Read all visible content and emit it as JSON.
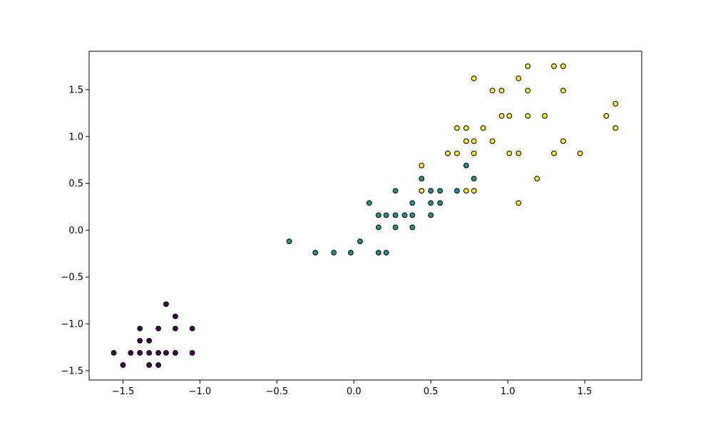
{
  "chart_data": {
    "type": "scatter",
    "title": "",
    "xlabel": "",
    "ylabel": "",
    "xlim": [
      -1.72,
      1.87
    ],
    "ylim": [
      -1.6,
      1.91
    ],
    "x_ticks": [
      -1.5,
      -1.0,
      -0.5,
      0.0,
      0.5,
      1.0,
      1.5
    ],
    "y_ticks": [
      -1.5,
      -1.0,
      -0.5,
      0.0,
      0.5,
      1.0,
      1.5
    ],
    "x_tick_labels": [
      "−1.5",
      "−1.0",
      "−0.5",
      "0.0",
      "0.5",
      "1.0",
      "1.5"
    ],
    "y_tick_labels": [
      "−1.5",
      "−1.0",
      "−0.5",
      "0.0",
      "0.5",
      "1.0",
      "1.5"
    ],
    "grid": false,
    "legend": "none",
    "marker_edge_color": "#000000",
    "series": [
      {
        "color": "#440154",
        "points": [
          [
            -1.56,
            -1.31
          ],
          [
            -1.5,
            -1.44
          ],
          [
            -1.45,
            -1.31
          ],
          [
            -1.39,
            -1.31
          ],
          [
            -1.39,
            -1.18
          ],
          [
            -1.39,
            -1.05
          ],
          [
            -1.33,
            -1.31
          ],
          [
            -1.33,
            -1.18
          ],
          [
            -1.33,
            -1.44
          ],
          [
            -1.27,
            -1.31
          ],
          [
            -1.27,
            -1.05
          ],
          [
            -1.27,
            -1.44
          ],
          [
            -1.22,
            -1.31
          ],
          [
            -1.22,
            -0.79
          ],
          [
            -1.16,
            -1.31
          ],
          [
            -1.16,
            -1.05
          ],
          [
            -1.16,
            -0.92
          ],
          [
            -1.05,
            -1.31
          ],
          [
            -1.05,
            -1.05
          ]
        ]
      },
      {
        "color": "#21918c",
        "points": [
          [
            -0.42,
            -0.12
          ],
          [
            -0.25,
            -0.24
          ],
          [
            -0.13,
            -0.24
          ],
          [
            -0.02,
            -0.24
          ],
          [
            0.04,
            -0.12
          ],
          [
            0.1,
            0.29
          ],
          [
            0.16,
            0.16
          ],
          [
            0.16,
            0.03
          ],
          [
            0.16,
            -0.24
          ],
          [
            0.21,
            0.16
          ],
          [
            0.21,
            -0.24
          ],
          [
            0.27,
            0.42
          ],
          [
            0.27,
            0.16
          ],
          [
            0.27,
            0.03
          ],
          [
            0.33,
            0.16
          ],
          [
            0.38,
            0.29
          ],
          [
            0.38,
            0.16
          ],
          [
            0.38,
            0.03
          ],
          [
            0.44,
            0.55
          ],
          [
            0.44,
            0.42
          ],
          [
            0.5,
            0.42
          ],
          [
            0.5,
            0.29
          ],
          [
            0.5,
            0.16
          ],
          [
            0.56,
            0.42
          ],
          [
            0.56,
            0.29
          ],
          [
            0.67,
            0.42
          ],
          [
            0.73,
            0.69
          ],
          [
            0.78,
            0.55
          ],
          [
            0.78,
            0.42
          ]
        ]
      },
      {
        "color": "#fde725",
        "points": [
          [
            0.44,
            0.69
          ],
          [
            0.44,
            0.42
          ],
          [
            0.61,
            0.82
          ],
          [
            0.61,
            0.82
          ],
          [
            0.67,
            1.09
          ],
          [
            0.67,
            0.82
          ],
          [
            0.73,
            1.09
          ],
          [
            0.73,
            0.95
          ],
          [
            0.73,
            0.42
          ],
          [
            0.78,
            1.62
          ],
          [
            0.78,
            0.95
          ],
          [
            0.78,
            0.82
          ],
          [
            0.78,
            0.42
          ],
          [
            0.84,
            1.09
          ],
          [
            0.9,
            1.49
          ],
          [
            0.9,
            0.95
          ],
          [
            0.96,
            1.49
          ],
          [
            0.96,
            1.22
          ],
          [
            1.01,
            1.22
          ],
          [
            1.01,
            0.82
          ],
          [
            1.07,
            1.62
          ],
          [
            1.07,
            0.82
          ],
          [
            1.07,
            0.29
          ],
          [
            1.13,
            1.75
          ],
          [
            1.13,
            1.49
          ],
          [
            1.13,
            1.22
          ],
          [
            1.19,
            0.55
          ],
          [
            1.24,
            1.22
          ],
          [
            1.3,
            1.75
          ],
          [
            1.3,
            0.82
          ],
          [
            1.36,
            1.75
          ],
          [
            1.36,
            1.49
          ],
          [
            1.36,
            0.95
          ],
          [
            1.47,
            0.82
          ],
          [
            1.64,
            1.22
          ],
          [
            1.7,
            1.35
          ],
          [
            1.7,
            1.09
          ]
        ]
      }
    ]
  }
}
